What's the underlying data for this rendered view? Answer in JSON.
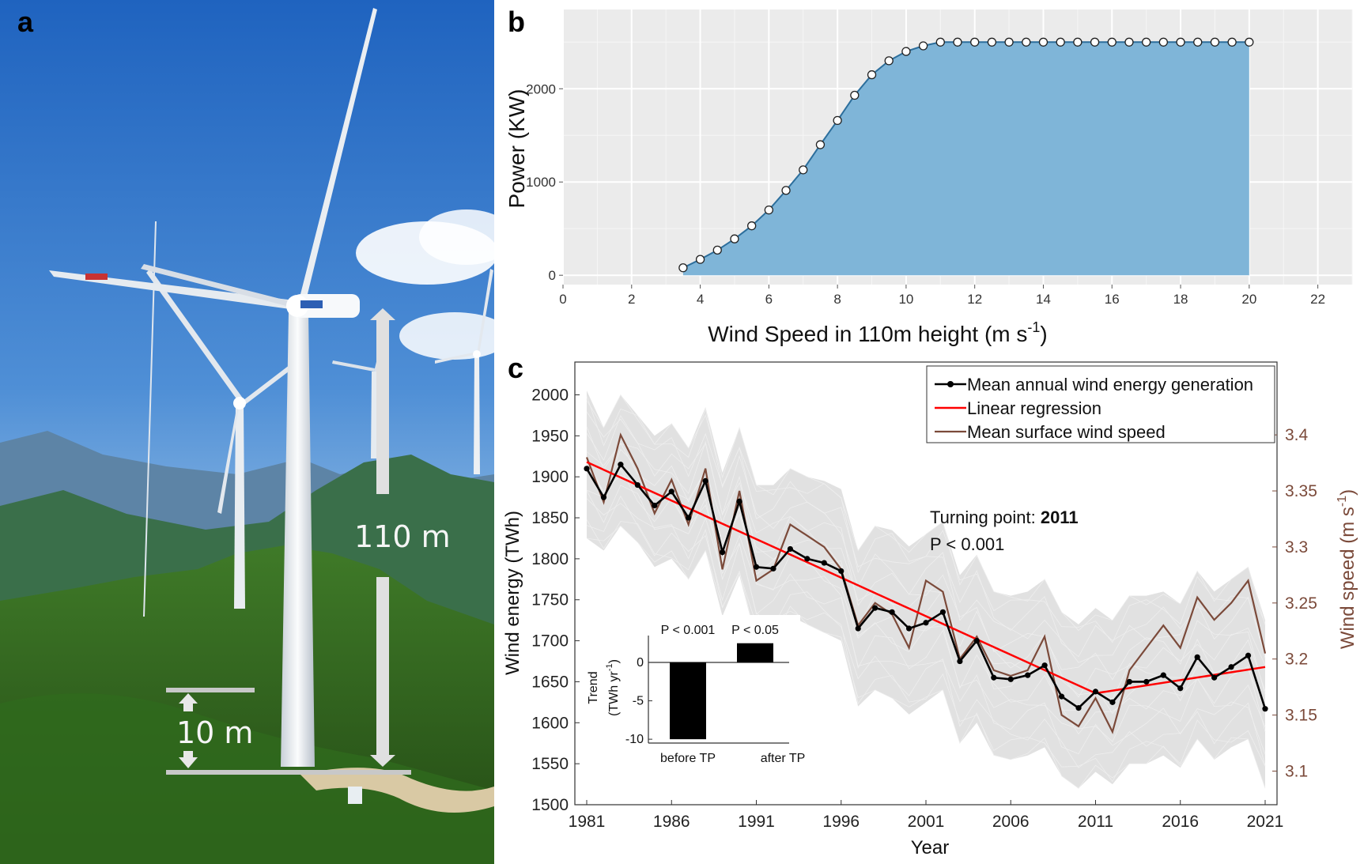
{
  "panels": {
    "a": {
      "letter": "a",
      "labels": [
        "110 m",
        "10 m"
      ],
      "colors": {
        "sky_top": "#2f76c8",
        "sky_bottom": "#bcd8ee",
        "forest": "#2e5a1c",
        "tower": "#f2f4f6"
      }
    },
    "b": {
      "letter": "b"
    },
    "c": {
      "letter": "c"
    }
  },
  "chart_data": [
    {
      "panel": "b",
      "type": "area",
      "xlabel": "Wind Speed in 110m height (m s",
      "xlabel_sup": "-1",
      "xlabel_end": ")",
      "ylabel": "Power (KW)",
      "xlim": [
        0,
        23
      ],
      "ylim": [
        -100,
        2850
      ],
      "xticks": [
        "0",
        "2",
        "4",
        "6",
        "8",
        "10",
        "12",
        "14",
        "16",
        "18",
        "20",
        "22"
      ],
      "yticks": [
        "0",
        "1000",
        "2000"
      ],
      "grid": true,
      "colors": {
        "fill": "#7fb5d8",
        "line": "#2c6e9c",
        "panel_bg": "#ebebeb",
        "grid": "#ffffff"
      },
      "x": [
        3.5,
        4,
        4.5,
        5,
        5.5,
        6,
        6.5,
        7,
        7.5,
        8,
        8.5,
        9,
        9.5,
        10,
        10.5,
        11,
        11.5,
        12,
        12.5,
        13,
        13.5,
        14,
        14.5,
        15,
        15.5,
        16,
        16.5,
        17,
        17.5,
        18,
        18.5,
        19,
        19.5,
        20
      ],
      "y": [
        80,
        170,
        270,
        390,
        530,
        700,
        910,
        1130,
        1400,
        1660,
        1930,
        2150,
        2300,
        2400,
        2460,
        2500,
        2500,
        2500,
        2500,
        2500,
        2500,
        2500,
        2500,
        2500,
        2500,
        2500,
        2500,
        2500,
        2500,
        2500,
        2500,
        2500,
        2500,
        2500
      ]
    },
    {
      "panel": "c",
      "type": "line",
      "xlabel": "Year",
      "ylabel": "Wind energy (TWh)",
      "y2label": "Wind speed (m s",
      "y2label_sup": "-1",
      "y2label_end": ")",
      "xlim": [
        1980.3,
        2021.7
      ],
      "ylim": [
        1500,
        2040
      ],
      "y2lim": [
        3.07,
        3.465
      ],
      "xticks": [
        "1981",
        "1986",
        "1991",
        "1996",
        "2001",
        "2006",
        "2011",
        "2016",
        "2021"
      ],
      "yticks": [
        "1500",
        "1550",
        "1600",
        "1650",
        "1700",
        "1750",
        "1800",
        "1850",
        "1900",
        "1950",
        "2000"
      ],
      "y2ticks": [
        "3.1",
        "3.15",
        "3.2",
        "3.25",
        "3.3",
        "3.35",
        "3.4"
      ],
      "legend_position": "top-right",
      "annotation": {
        "prefix": "Turning point: ",
        "year": "2011",
        "pvalue": "P < 0.001"
      },
      "x": [
        1981,
        1982,
        1983,
        1984,
        1985,
        1986,
        1987,
        1988,
        1989,
        1990,
        1991,
        1992,
        1993,
        1994,
        1995,
        1996,
        1997,
        1998,
        1999,
        2000,
        2001,
        2002,
        2003,
        2004,
        2005,
        2006,
        2007,
        2008,
        2009,
        2010,
        2011,
        2012,
        2013,
        2014,
        2015,
        2016,
        2017,
        2018,
        2019,
        2020,
        2021
      ],
      "series": [
        {
          "name": "Mean annual wind energy generation",
          "color": "#000000",
          "axis": "left",
          "values": [
            1910,
            1875,
            1915,
            1890,
            1865,
            1882,
            1850,
            1895,
            1808,
            1870,
            1790,
            1788,
            1812,
            1800,
            1795,
            1785,
            1715,
            1740,
            1735,
            1715,
            1722,
            1735,
            1675,
            1700,
            1655,
            1653,
            1658,
            1670,
            1632,
            1618,
            1638,
            1625,
            1650,
            1650,
            1658,
            1642,
            1680,
            1655,
            1668,
            1682,
            1617
          ]
        },
        {
          "name": "Linear regression",
          "color": "#ff0000",
          "axis": "left",
          "values": [
            1918,
            1636,
            1668
          ],
          "x": [
            1981,
            2011,
            2021
          ]
        },
        {
          "name": "Mean surface wind speed",
          "color": "#7b4a3a",
          "axis": "right",
          "values": [
            3.38,
            3.34,
            3.4,
            3.37,
            3.33,
            3.36,
            3.32,
            3.37,
            3.28,
            3.35,
            3.27,
            3.28,
            3.32,
            3.31,
            3.3,
            3.28,
            3.23,
            3.25,
            3.24,
            3.21,
            3.27,
            3.26,
            3.2,
            3.22,
            3.19,
            3.185,
            3.19,
            3.22,
            3.15,
            3.14,
            3.165,
            3.135,
            3.19,
            3.21,
            3.23,
            3.21,
            3.255,
            3.235,
            3.25,
            3.27,
            3.205
          ]
        }
      ],
      "background_band": {
        "color": "#d9d9d9",
        "low": [
          1825,
          1810,
          1840,
          1820,
          1790,
          1800,
          1775,
          1810,
          1730,
          1780,
          1700,
          1700,
          1730,
          1720,
          1710,
          1700,
          1620,
          1640,
          1630,
          1610,
          1625,
          1640,
          1575,
          1600,
          1560,
          1555,
          1560,
          1570,
          1535,
          1520,
          1540,
          1525,
          1550,
          1550,
          1560,
          1545,
          1580,
          1555,
          1570,
          1580,
          1520
        ],
        "high": [
          2005,
          1960,
          2000,
          1975,
          1950,
          1965,
          1935,
          1985,
          1905,
          1960,
          1890,
          1890,
          1910,
          1900,
          1895,
          1885,
          1810,
          1840,
          1835,
          1815,
          1830,
          1845,
          1780,
          1805,
          1760,
          1755,
          1760,
          1775,
          1735,
          1720,
          1740,
          1725,
          1755,
          1755,
          1760,
          1745,
          1785,
          1760,
          1775,
          1790,
          1725
        ]
      }
    },
    {
      "panel": "c-inset",
      "type": "bar",
      "ylabel": "Trend",
      "ylabel2": "(TWh yr",
      "ylabel2_sup": "-1",
      "ylabel2_end": ")",
      "categories": [
        "before TP",
        "after TP"
      ],
      "values": [
        -10,
        2.5
      ],
      "labels": [
        "P < 0.001",
        "P < 0.05"
      ],
      "ylim": [
        -10.5,
        3.5
      ],
      "yticks": [
        "0",
        "-5",
        "-10"
      ],
      "color": "#000000"
    }
  ]
}
